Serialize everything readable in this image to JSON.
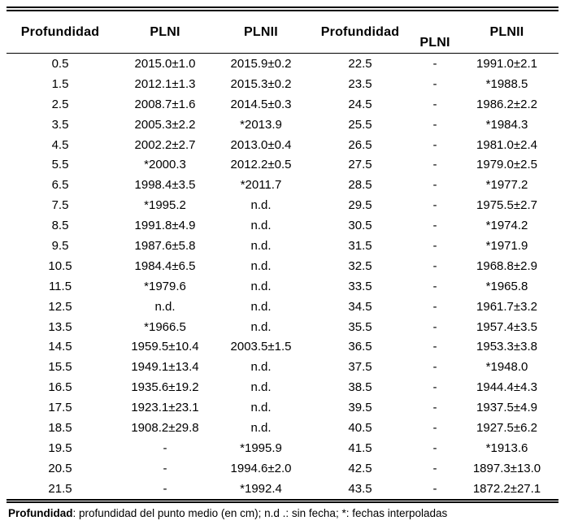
{
  "table": {
    "headers": [
      "Profundidad",
      "PLNI",
      "PLNII",
      "Profundidad",
      "PLNI",
      "PLNII"
    ],
    "rows": [
      [
        "0.5",
        "2015.0±1.0",
        "2015.9±0.2",
        "22.5",
        "-",
        "1991.0±2.1"
      ],
      [
        "1.5",
        "2012.1±1.3",
        "2015.3±0.2",
        "23.5",
        "-",
        "*1988.5"
      ],
      [
        "2.5",
        "2008.7±1.6",
        "2014.5±0.3",
        "24.5",
        "-",
        "1986.2±2.2"
      ],
      [
        "3.5",
        "2005.3±2.2",
        "*2013.9",
        "25.5",
        "-",
        "*1984.3"
      ],
      [
        "4.5",
        "2002.2±2.7",
        "2013.0±0.4",
        "26.5",
        "-",
        "1981.0±2.4"
      ],
      [
        "5.5",
        "*2000.3",
        "2012.2±0.5",
        "27.5",
        "-",
        "1979.0±2.5"
      ],
      [
        "6.5",
        "1998.4±3.5",
        "*2011.7",
        "28.5",
        "-",
        "*1977.2"
      ],
      [
        "7.5",
        "*1995.2",
        "n.d.",
        "29.5",
        "-",
        "1975.5±2.7"
      ],
      [
        "8.5",
        "1991.8±4.9",
        "n.d.",
        "30.5",
        "-",
        "*1974.2"
      ],
      [
        "9.5",
        "1987.6±5.8",
        "n.d.",
        "31.5",
        "-",
        "*1971.9"
      ],
      [
        "10.5",
        "1984.4±6.5",
        "n.d.",
        "32.5",
        "-",
        "1968.8±2.9"
      ],
      [
        "11.5",
        "*1979.6",
        "n.d.",
        "33.5",
        "-",
        "*1965.8"
      ],
      [
        "12.5",
        "n.d.",
        "n.d.",
        "34.5",
        "-",
        "1961.7±3.2"
      ],
      [
        "13.5",
        "*1966.5",
        "n.d.",
        "35.5",
        "-",
        "1957.4±3.5"
      ],
      [
        "14.5",
        "1959.5±10.4",
        "2003.5±1.5",
        "36.5",
        "-",
        "1953.3±3.8"
      ],
      [
        "15.5",
        "1949.1±13.4",
        "n.d.",
        "37.5",
        "-",
        "*1948.0"
      ],
      [
        "16.5",
        "1935.6±19.2",
        "n.d.",
        "38.5",
        "-",
        "1944.4±4.3"
      ],
      [
        "17.5",
        "1923.1±23.1",
        "n.d.",
        "39.5",
        "-",
        "1937.5±4.9"
      ],
      [
        "18.5",
        "1908.2±29.8",
        "n.d.",
        "40.5",
        "-",
        "1927.5±6.2"
      ],
      [
        "19.5",
        "-",
        "*1995.9",
        "41.5",
        "-",
        "*1913.6"
      ],
      [
        "20.5",
        "-",
        "1994.6±2.0",
        "42.5",
        "-",
        "1897.3±13.0"
      ],
      [
        "21.5",
        "-",
        "*1992.4",
        "43.5",
        "-",
        "1872.2±27.1"
      ]
    ]
  },
  "footnote": {
    "term": "Profundidad",
    "rest": ": profundidad del punto medio (en cm); n.d .: sin fecha; *: fechas interpoladas"
  },
  "colors": {
    "text": "#000000",
    "background": "#ffffff",
    "rule": "#000000"
  }
}
